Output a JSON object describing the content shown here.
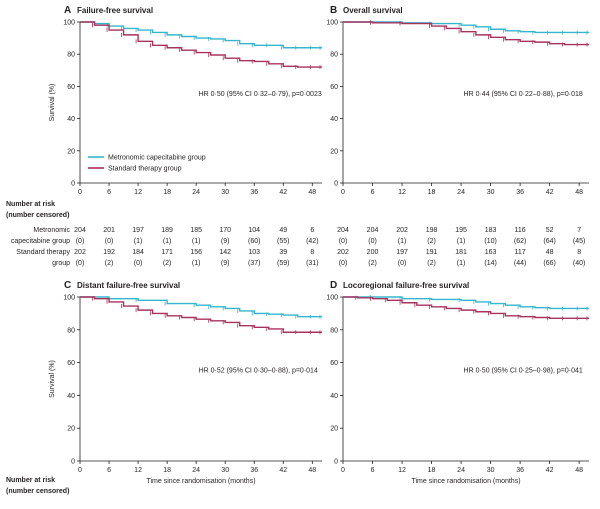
{
  "colors": {
    "metronomic": "#36b6cc",
    "standard": "#a8325e",
    "axis": "#231f20"
  },
  "legend": {
    "metronomic": "Metronomic capecitabine group",
    "standard": "Standard therapy group"
  },
  "risk_header": [
    "Number at risk",
    "(number censored)"
  ],
  "risk_table": {
    "row_labels": [
      "Metronomic",
      "capecitabine group",
      "Standard therapy",
      "group"
    ],
    "A": {
      "metronomic_n": [
        "204",
        "201",
        "197",
        "189",
        "185",
        "170",
        "104",
        "49",
        "6"
      ],
      "metronomic_c": [
        "(0)",
        "(0)",
        "(1)",
        "(1)",
        "(1)",
        "(9)",
        "(60)",
        "(55)",
        "(42)"
      ],
      "standard_n": [
        "202",
        "192",
        "184",
        "171",
        "156",
        "142",
        "103",
        "39",
        "8"
      ],
      "standard_c": [
        "(0)",
        "(2)",
        "(0)",
        "(2)",
        "(1)",
        "(9)",
        "(37)",
        "(59)",
        "(31)"
      ]
    },
    "B": {
      "metronomic_n": [
        "204",
        "204",
        "202",
        "198",
        "195",
        "183",
        "116",
        "52",
        "7"
      ],
      "metronomic_c": [
        "(0)",
        "(0)",
        "(1)",
        "(2)",
        "(1)",
        "(10)",
        "(62)",
        "(64)",
        "(45)"
      ],
      "standard_n": [
        "202",
        "200",
        "197",
        "191",
        "181",
        "163",
        "117",
        "48",
        "8"
      ],
      "standard_c": [
        "(0)",
        "(2)",
        "(0)",
        "(2)",
        "(1)",
        "(14)",
        "(44)",
        "(66)",
        "(40)"
      ]
    }
  },
  "chart_data": [
    {
      "panel": "A",
      "type": "line",
      "title": "Failure-free survival",
      "ylabel": "Survival (%)",
      "xlabel": "",
      "xlim": [
        0,
        50
      ],
      "ylim": [
        0,
        100
      ],
      "xticks": [
        0,
        6,
        12,
        18,
        24,
        30,
        36,
        42,
        48
      ],
      "yticks": [
        0,
        20,
        40,
        60,
        80,
        100
      ],
      "annotation": "HR 0·50 (95% CI 0·32–0·79), p=0·0023",
      "series": [
        {
          "name": "Metronomic capecitabine group",
          "x": [
            0,
            3,
            6,
            9,
            12,
            15,
            18,
            21,
            24,
            27,
            30,
            33,
            36,
            39,
            42,
            45,
            48,
            50
          ],
          "y": [
            100,
            99,
            97.5,
            96,
            95,
            93.5,
            92,
            91,
            90,
            89.5,
            88.5,
            86.5,
            85.5,
            85.5,
            84,
            84,
            84,
            84
          ]
        },
        {
          "name": "Standard therapy group",
          "x": [
            0,
            3,
            6,
            9,
            12,
            15,
            18,
            21,
            24,
            27,
            30,
            33,
            36,
            39,
            42,
            45,
            48,
            50
          ],
          "y": [
            100,
            98,
            95,
            92,
            88,
            85.5,
            84,
            82.5,
            81,
            79.5,
            77.5,
            76,
            75.5,
            74,
            72.5,
            72,
            72,
            72
          ]
        }
      ]
    },
    {
      "panel": "B",
      "type": "line",
      "title": "Overall survival",
      "ylabel": "",
      "xlabel": "",
      "xlim": [
        0,
        50
      ],
      "ylim": [
        0,
        100
      ],
      "xticks": [
        0,
        6,
        12,
        18,
        24,
        30,
        36,
        42,
        48
      ],
      "yticks": [
        0,
        20,
        40,
        60,
        80,
        100
      ],
      "annotation": "HR 0·44 (95% CI 0·22–0·88), p=0·018",
      "series": [
        {
          "name": "Metronomic capecitabine group",
          "x": [
            0,
            6,
            12,
            18,
            24,
            27,
            30,
            33,
            36,
            39,
            42,
            45,
            48,
            50
          ],
          "y": [
            100,
            100,
            99.5,
            99,
            98,
            97,
            95.5,
            94.5,
            94,
            93.5,
            93.5,
            93.5,
            93.5,
            93.5
          ]
        },
        {
          "name": "Standard therapy group",
          "x": [
            0,
            6,
            12,
            18,
            21,
            24,
            27,
            30,
            33,
            36,
            39,
            42,
            45,
            48,
            50
          ],
          "y": [
            100,
            99.5,
            99,
            97.5,
            96,
            94,
            92,
            90.5,
            89,
            88,
            87.5,
            86.5,
            86,
            86,
            86
          ]
        }
      ]
    },
    {
      "panel": "C",
      "type": "line",
      "title": "Distant failure-free survival",
      "ylabel": "Survival (%)",
      "xlabel": "Time since randomisation (months)",
      "xlim": [
        0,
        50
      ],
      "ylim": [
        0,
        100
      ],
      "xticks": [
        0,
        6,
        12,
        18,
        24,
        30,
        36,
        42,
        48
      ],
      "yticks": [
        0,
        20,
        40,
        60,
        80,
        100
      ],
      "annotation": "HR 0·52 (95% CI 0·30–0·88), p=0·014",
      "series": [
        {
          "name": "Metronomic capecitabine group",
          "x": [
            0,
            6,
            12,
            18,
            24,
            27,
            30,
            33,
            36,
            39,
            42,
            45,
            48,
            50
          ],
          "y": [
            100,
            99,
            98,
            96,
            95,
            94,
            93,
            91.5,
            90,
            89.5,
            89,
            88,
            88,
            88
          ]
        },
        {
          "name": "Standard therapy group",
          "x": [
            0,
            3,
            6,
            9,
            12,
            15,
            18,
            21,
            24,
            27,
            30,
            33,
            36,
            39,
            42,
            45,
            48,
            50
          ],
          "y": [
            100,
            99,
            97,
            94.5,
            92,
            90,
            88.5,
            87.5,
            86.5,
            85.5,
            84.5,
            82.5,
            81.5,
            80.5,
            78.5,
            78.5,
            78.5,
            78.5
          ]
        }
      ]
    },
    {
      "panel": "D",
      "type": "line",
      "title": "Locoregional failure-free survival",
      "ylabel": "",
      "xlabel": "Time since randomisation (months)",
      "xlim": [
        0,
        50
      ],
      "ylim": [
        0,
        100
      ],
      "xticks": [
        0,
        6,
        12,
        18,
        24,
        30,
        36,
        42,
        48
      ],
      "yticks": [
        0,
        20,
        40,
        60,
        80,
        100
      ],
      "annotation": "HR 0·50 (95% CI 0·25–0·98), p=0·041",
      "series": [
        {
          "name": "Metronomic capecitabine group",
          "x": [
            0,
            6,
            12,
            18,
            24,
            27,
            30,
            33,
            36,
            39,
            42,
            45,
            48,
            50
          ],
          "y": [
            100,
            100,
            99,
            98.5,
            98,
            97,
            96,
            95,
            94,
            93.5,
            93,
            93,
            93,
            93
          ]
        },
        {
          "name": "Standard therapy group",
          "x": [
            0,
            3,
            6,
            9,
            12,
            15,
            18,
            21,
            24,
            27,
            30,
            33,
            36,
            39,
            42,
            45,
            48,
            50
          ],
          "y": [
            100,
            99.5,
            99,
            98,
            96.5,
            95,
            94,
            93,
            92,
            91,
            90,
            88.5,
            88,
            87.5,
            87,
            87,
            87,
            87
          ]
        }
      ]
    }
  ]
}
